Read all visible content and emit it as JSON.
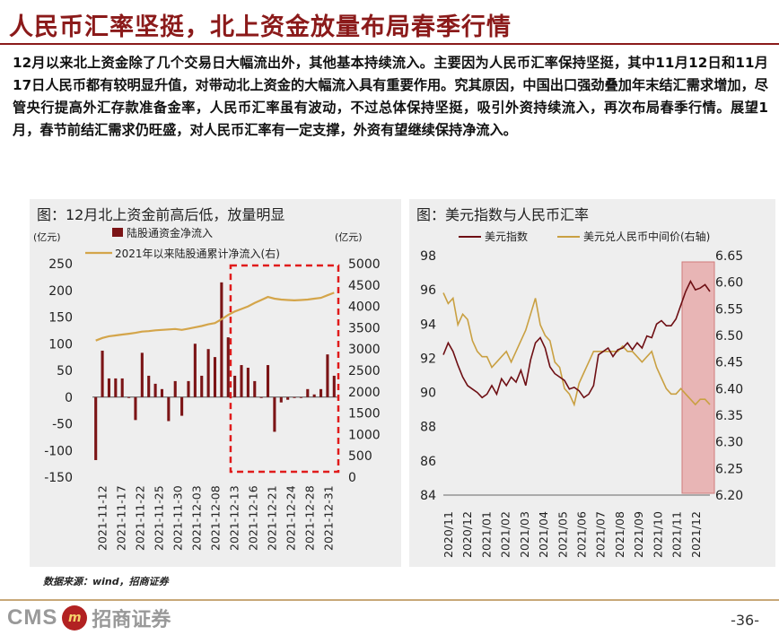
{
  "page": {
    "title": "人民币汇率坚挺，北上资金放量布局春季行情",
    "body": "12月以来北上资金除了几个交易日大幅流出外，其他基本持续流入。主要因为人民币汇率保持坚挺，其中11月12日和11月17日人民币都有较明显升值，对带动北上资金的大幅流入具有重要作用。究其原因，中国出口强劲叠加年末结汇需求增加，尽管央行提高外汇存款准备金率，人民币汇率虽有波动，不过总体保持坚挺，吸引外资持续流入，再次布局春季行情。展望1月，春节前结汇需求仍旺盛，对人民币汇率有一定支撑，外资有望继续保持净流入。",
    "source": "数据来源：wind，招商证券",
    "page_number": "-36-",
    "logo": {
      "cms": "CMS",
      "mark": "m",
      "name": "招商证券"
    }
  },
  "chart_data": [
    {
      "type": "bar",
      "title": "图：12月北上资金前高后低，放量明显",
      "unit_left": "(亿元)",
      "unit_right": "(亿元)",
      "ylim": [
        -150,
        250
      ],
      "y2lim": [
        0,
        5000
      ],
      "yticks": [
        -150,
        -100,
        -50,
        0,
        50,
        100,
        150,
        200,
        250
      ],
      "y2ticks": [
        0,
        500,
        1000,
        1500,
        2000,
        2500,
        3000,
        3500,
        4000,
        4500,
        5000
      ],
      "x_tick_labels": [
        "2021-11-12",
        "2021-11-17",
        "2021-11-22",
        "2021-11-25",
        "2021-11-30",
        "2021-12-03",
        "2021-12-08",
        "2021-12-13",
        "2021-12-16",
        "2021-12-21",
        "2021-12-24",
        "2021-12-28",
        "2021-12-31"
      ],
      "series": [
        {
          "name": "陆股通资金净流入",
          "kind": "bar",
          "axis": "left",
          "color": "#7b1416",
          "values": [
            -118,
            87,
            35,
            35,
            35,
            0,
            -43,
            83,
            40,
            25,
            15,
            -45,
            30,
            -35,
            30,
            100,
            40,
            90,
            75,
            215,
            112,
            40,
            60,
            55,
            30,
            0,
            60,
            -65,
            -10,
            -5,
            0,
            0,
            15,
            5,
            15,
            80,
            40
          ]
        },
        {
          "name": "2021年以来陆股通累计净流入(右)",
          "kind": "line",
          "axis": "right",
          "color": "#d4a54a",
          "values": [
            3200,
            3260,
            3300,
            3320,
            3340,
            3360,
            3380,
            3410,
            3420,
            3440,
            3450,
            3460,
            3470,
            3450,
            3480,
            3510,
            3540,
            3580,
            3610,
            3700,
            3800,
            3880,
            3940,
            4000,
            4080,
            4150,
            4220,
            4180,
            4160,
            4150,
            4140,
            4150,
            4160,
            4180,
            4200,
            4260,
            4320
          ]
        }
      ],
      "highlight": {
        "from_index": 21,
        "to_index": 36,
        "style": "dashed-box",
        "color": "#e01b1b"
      }
    },
    {
      "type": "line",
      "title": "图：美元指数与人民币汇率",
      "ylim": [
        84,
        98
      ],
      "y2lim": [
        6.2,
        6.65
      ],
      "yticks": [
        84,
        86,
        88,
        90,
        92,
        94,
        96,
        98
      ],
      "y2ticks": [
        6.2,
        6.25,
        6.3,
        6.35,
        6.4,
        6.45,
        6.5,
        6.55,
        6.6,
        6.65
      ],
      "x_tick_labels": [
        "2020/11",
        "2020/12",
        "2021/01",
        "2021/02",
        "2021/03",
        "2021/04",
        "2021/05",
        "2021/06",
        "2021/07",
        "2021/08",
        "2021/09",
        "2021/10",
        "2021/11",
        "2021/12"
      ],
      "series": [
        {
          "name": "美元指数",
          "axis": "left",
          "color": "#6e0f14",
          "values": [
            92.2,
            92.9,
            92.4,
            91.6,
            90.9,
            90.4,
            90.2,
            90.0,
            89.7,
            89.9,
            90.4,
            89.9,
            90.8,
            90.4,
            90.9,
            90.6,
            91.3,
            90.4,
            91.9,
            92.9,
            93.2,
            92.6,
            91.5,
            91.1,
            90.9,
            90.7,
            90.2,
            90.3,
            90.1,
            89.7,
            89.9,
            90.4,
            92.2,
            92.4,
            92.6,
            92.1,
            92.5,
            92.6,
            92.9,
            92.5,
            92.9,
            92.6,
            93.3,
            93.2,
            94.0,
            94.2,
            93.9,
            93.9,
            94.3,
            95.1,
            95.9,
            96.5,
            96.0,
            96.1,
            96.3,
            95.9
          ]
        },
        {
          "name": "美元兑人民币中间价(右轴)",
          "axis": "right",
          "color": "#c9a042",
          "values": [
            6.58,
            6.56,
            6.57,
            6.52,
            6.54,
            6.53,
            6.49,
            6.47,
            6.46,
            6.46,
            6.44,
            6.45,
            6.46,
            6.47,
            6.45,
            6.47,
            6.49,
            6.51,
            6.54,
            6.57,
            6.52,
            6.5,
            6.49,
            6.45,
            6.44,
            6.4,
            6.39,
            6.37,
            6.41,
            6.43,
            6.45,
            6.47,
            6.47,
            6.47,
            6.47,
            6.47,
            6.47,
            6.48,
            6.47,
            6.47,
            6.46,
            6.45,
            6.46,
            6.47,
            6.44,
            6.42,
            6.4,
            6.39,
            6.39,
            6.4,
            6.39,
            6.38,
            6.37,
            6.38,
            6.38,
            6.37
          ]
        }
      ],
      "highlight": {
        "from_index": 50,
        "to_index": 55,
        "style": "shaded",
        "color": "#e6a2a2"
      }
    }
  ]
}
